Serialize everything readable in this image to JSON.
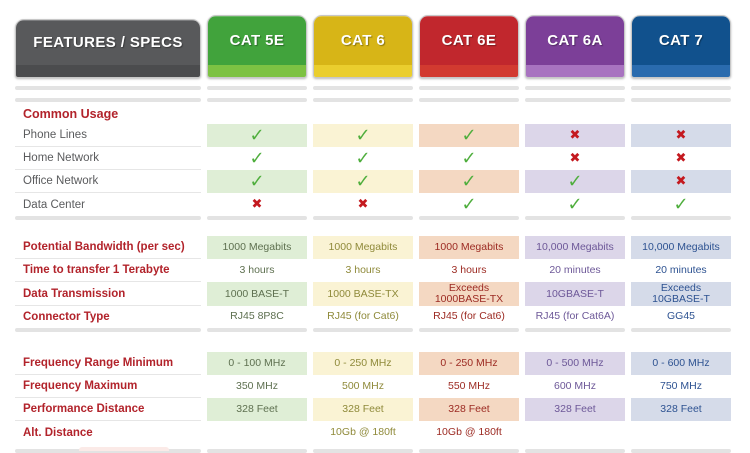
{
  "header": {
    "label_tab": "FEATURES / SPECS",
    "label_tab_colors": {
      "body": "#58595b",
      "strip": "#4b4c4e"
    },
    "tabs": [
      {
        "label": "CAT 5E",
        "color": "#41a33c",
        "strip": "#7dc243",
        "tint": "#dfeed6",
        "text": "#5e7050"
      },
      {
        "label": "CAT 6",
        "color": "#d7b517",
        "strip": "#eace2e",
        "tint": "#faf3d4",
        "text": "#8f8a3a"
      },
      {
        "label": "CAT 6E",
        "color": "#c1272d",
        "strip": "#d23a30",
        "tint": "#f4d8c2",
        "text": "#9c2a22"
      },
      {
        "label": "CAT 6A",
        "color": "#7c3f98",
        "strip": "#a873c0",
        "tint": "#dcd6e9",
        "text": "#6d5898"
      },
      {
        "label": "CAT 7",
        "color": "#11518d",
        "strip": "#2a6bae",
        "tint": "#d5dbe9",
        "text": "#2d5291"
      }
    ]
  },
  "marks": {
    "check_glyph": "✓",
    "cross_glyph": "✖",
    "check_color": "#4fae3d",
    "cross_color": "#c4191f"
  },
  "colors": {
    "section_label_red": "#b2232b",
    "row_label_gray": "#5a5b5d",
    "divider_gray": "#e3e3e3",
    "cutoff_pink": "#fbeae7"
  },
  "chart_data": {
    "type": "table",
    "columns": [
      "CAT 5E",
      "CAT 6",
      "CAT 6E",
      "CAT 6A",
      "CAT 7"
    ],
    "sections": [
      {
        "title": "Common Usage",
        "emphasis": false,
        "rows": [
          {
            "label": "Phone Lines",
            "kind": "marks",
            "values": [
              "yes",
              "yes",
              "yes",
              "no",
              "no"
            ]
          },
          {
            "label": "Home Network",
            "kind": "marks",
            "values": [
              "yes",
              "yes",
              "yes",
              "no",
              "no"
            ]
          },
          {
            "label": "Office Network",
            "kind": "marks",
            "values": [
              "yes",
              "yes",
              "yes",
              "yes",
              "no"
            ]
          },
          {
            "label": "Data Center",
            "kind": "marks",
            "values": [
              "no",
              "no",
              "yes",
              "yes",
              "yes"
            ]
          }
        ]
      },
      {
        "title": "",
        "emphasis": true,
        "rows": [
          {
            "label": "Potential Bandwidth (per sec)",
            "kind": "text",
            "values": [
              "1000 Megabits",
              "1000 Megabits",
              "1000 Megabits",
              "10,000 Megabits",
              "10,000 Megabits"
            ]
          },
          {
            "label": "Time to transfer 1 Terabyte",
            "kind": "text",
            "values": [
              "3 hours",
              "3 hours",
              "3 hours",
              "20 minutes",
              "20 minutes"
            ]
          },
          {
            "label": "Data Transmission",
            "kind": "text",
            "values": [
              "1000 BASE-T",
              "1000 BASE-TX",
              "Exceeds 1000BASE-TX",
              "10GBASE-T",
              "Exceeds 10GBASE-T"
            ]
          },
          {
            "label": "Connector Type",
            "kind": "text",
            "values": [
              "RJ45 8P8C",
              "RJ45 (for Cat6)",
              "RJ45 (for Cat6)",
              "RJ45 (for Cat6A)",
              "GG45"
            ]
          }
        ]
      },
      {
        "title": "",
        "emphasis": true,
        "rows": [
          {
            "label": "Frequency Range Minimum",
            "kind": "text",
            "values": [
              "0 - 100 MHz",
              "0 - 250 MHz",
              "0 - 250 MHz",
              "0 - 500 MHz",
              "0 - 600 MHz"
            ]
          },
          {
            "label": "Frequency Maximum",
            "kind": "text",
            "values": [
              "350 MHz",
              "500 MHz",
              "550 MHz",
              "600 MHz",
              "750 MHz"
            ]
          },
          {
            "label": "Performance Distance",
            "kind": "text",
            "values": [
              "328 Feet",
              "328 Feet",
              "328 Feet",
              "328 Feet",
              "328 Feet"
            ]
          },
          {
            "label": "Alt. Distance",
            "kind": "text",
            "values": [
              "",
              "10Gb @ 180ft",
              "10Gb @ 180ft",
              "",
              ""
            ]
          }
        ]
      }
    ]
  }
}
